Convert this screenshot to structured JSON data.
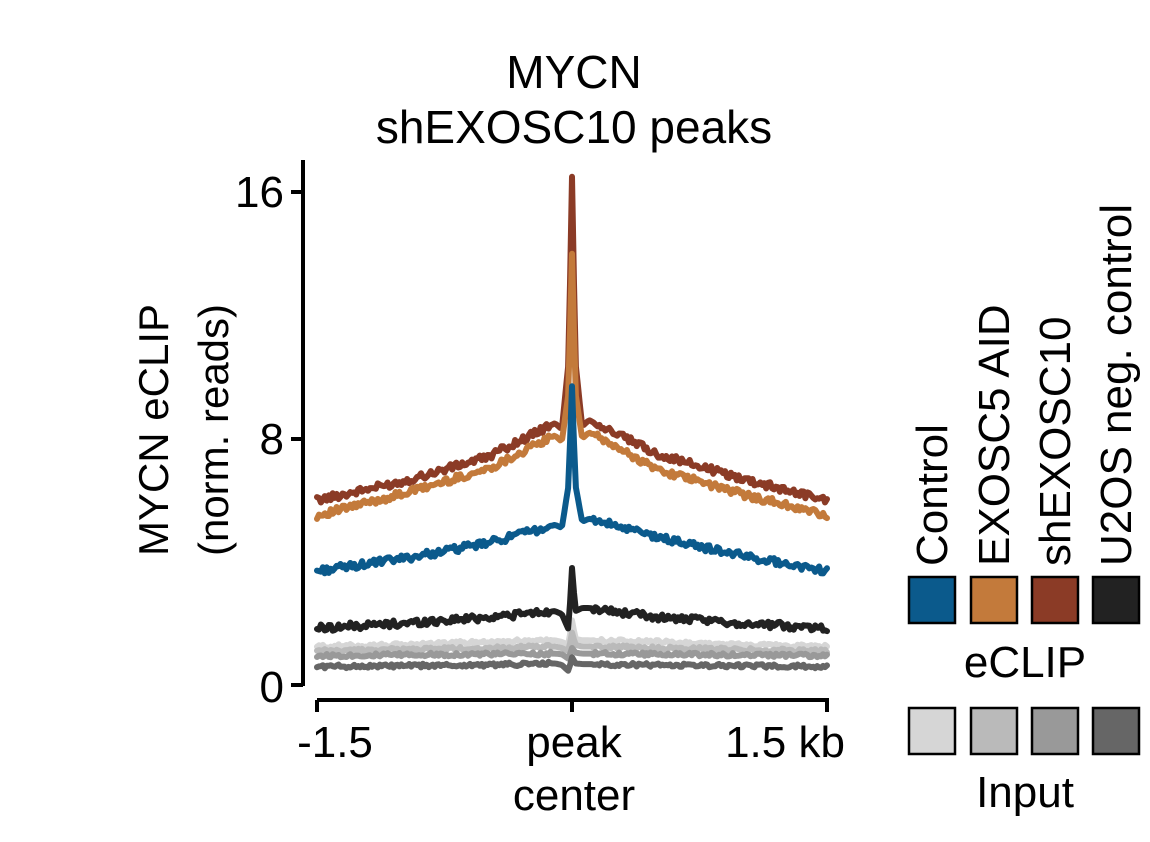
{
  "chart_data": {
    "type": "line",
    "title": "MYCN",
    "subtitle": "shEXOSC10 peaks",
    "ylabel": "MYCN eCLIP",
    "ylabel_sub": "(norm. reads)",
    "ylim": [
      0,
      16.5
    ],
    "yticks": [
      "0",
      "8",
      "16"
    ],
    "x_domain": [
      -1.5,
      1.5
    ],
    "xtick_labels": {
      "left": "-1.5",
      "center_line1": "peak",
      "center_line2": "center",
      "right": "1.5 kb"
    },
    "grid": false,
    "legend_placement": "right",
    "legend": {
      "conditions": [
        "Control",
        "EXOSC5 AID",
        "shEXOSC10",
        "U2OS neg. control"
      ],
      "eclip_label": "eCLIP",
      "input_label": "Input",
      "eclip_colors": [
        "#0b5a8c",
        "#c37a3b",
        "#8b3b26",
        "#222222"
      ],
      "input_colors": [
        "#d6d6d6",
        "#bababa",
        "#999999",
        "#666666"
      ]
    },
    "series": [
      {
        "name": "shEXOSC10",
        "group": "eCLIP",
        "color": "#8b3b26",
        "x": [
          -1.5,
          -1.0,
          -0.5,
          -0.1,
          -0.06,
          -0.02,
          0.0,
          0.02,
          0.06,
          0.1,
          0.5,
          1.0,
          1.5
        ],
        "y": [
          6.0,
          6.6,
          7.4,
          8.5,
          8.3,
          10.5,
          16.5,
          10.5,
          8.4,
          8.6,
          7.5,
          6.7,
          6.0
        ]
      },
      {
        "name": "EXOSC5 AID",
        "group": "eCLIP",
        "color": "#c37a3b",
        "x": [
          -1.5,
          -1.0,
          -0.5,
          -0.1,
          -0.06,
          -0.02,
          0.0,
          0.02,
          0.06,
          0.1,
          0.5,
          1.0,
          1.5
        ],
        "y": [
          5.5,
          6.2,
          7.0,
          8.1,
          7.9,
          9.5,
          14.0,
          9.5,
          8.0,
          8.2,
          7.0,
          6.2,
          5.5
        ]
      },
      {
        "name": "Control",
        "group": "eCLIP",
        "color": "#0b5a8c",
        "x": [
          -1.5,
          -1.0,
          -0.5,
          -0.1,
          -0.06,
          -0.02,
          0.0,
          0.02,
          0.06,
          0.1,
          0.5,
          1.0,
          1.5
        ],
        "y": [
          3.7,
          4.1,
          4.6,
          5.2,
          5.1,
          6.5,
          9.7,
          6.5,
          5.3,
          5.4,
          4.8,
          4.2,
          3.7
        ]
      },
      {
        "name": "U2OS neg. control",
        "group": "eCLIP",
        "color": "#222222",
        "x": [
          -1.5,
          -1.0,
          -0.5,
          -0.1,
          -0.06,
          -0.02,
          0.0,
          0.02,
          0.06,
          0.1,
          0.5,
          1.0,
          1.5
        ],
        "y": [
          1.85,
          2.0,
          2.2,
          2.4,
          2.3,
          1.8,
          3.8,
          2.4,
          2.5,
          2.5,
          2.2,
          2.0,
          1.85
        ]
      },
      {
        "name": "Control",
        "group": "Input",
        "color": "#d6d6d6",
        "x": [
          -1.5,
          -1.0,
          -0.5,
          -0.1,
          -0.06,
          -0.02,
          0.0,
          0.02,
          0.06,
          0.1,
          0.5,
          1.0,
          1.5
        ],
        "y": [
          1.25,
          1.3,
          1.4,
          1.45,
          1.4,
          1.3,
          2.1,
          1.5,
          1.45,
          1.45,
          1.4,
          1.3,
          1.25
        ]
      },
      {
        "name": "EXOSC5 AID",
        "group": "Input",
        "color": "#bababa",
        "x": [
          -1.5,
          -1.0,
          -0.5,
          -0.1,
          -0.06,
          -0.02,
          0.0,
          0.02,
          0.06,
          0.1,
          0.5,
          1.0,
          1.5
        ],
        "y": [
          1.1,
          1.15,
          1.2,
          1.25,
          1.2,
          1.1,
          1.7,
          1.3,
          1.25,
          1.25,
          1.2,
          1.15,
          1.1
        ]
      },
      {
        "name": "shEXOSC10",
        "group": "Input",
        "color": "#999999",
        "x": [
          -1.5,
          -1.0,
          -0.5,
          -0.1,
          -0.06,
          -0.02,
          0.0,
          0.02,
          0.06,
          0.1,
          0.5,
          1.0,
          1.5
        ],
        "y": [
          0.95,
          0.98,
          1.0,
          1.02,
          1.0,
          0.85,
          1.2,
          1.05,
          1.02,
          1.02,
          1.0,
          0.98,
          0.95
        ]
      },
      {
        "name": "U2OS neg. control",
        "group": "Input",
        "color": "#666666",
        "x": [
          -1.5,
          -1.0,
          -0.5,
          -0.1,
          -0.06,
          -0.02,
          0.0,
          0.02,
          0.06,
          0.1,
          0.5,
          1.0,
          1.5
        ],
        "y": [
          0.6,
          0.62,
          0.65,
          0.7,
          0.65,
          0.45,
          0.9,
          0.7,
          0.68,
          0.68,
          0.65,
          0.62,
          0.6
        ]
      }
    ]
  }
}
